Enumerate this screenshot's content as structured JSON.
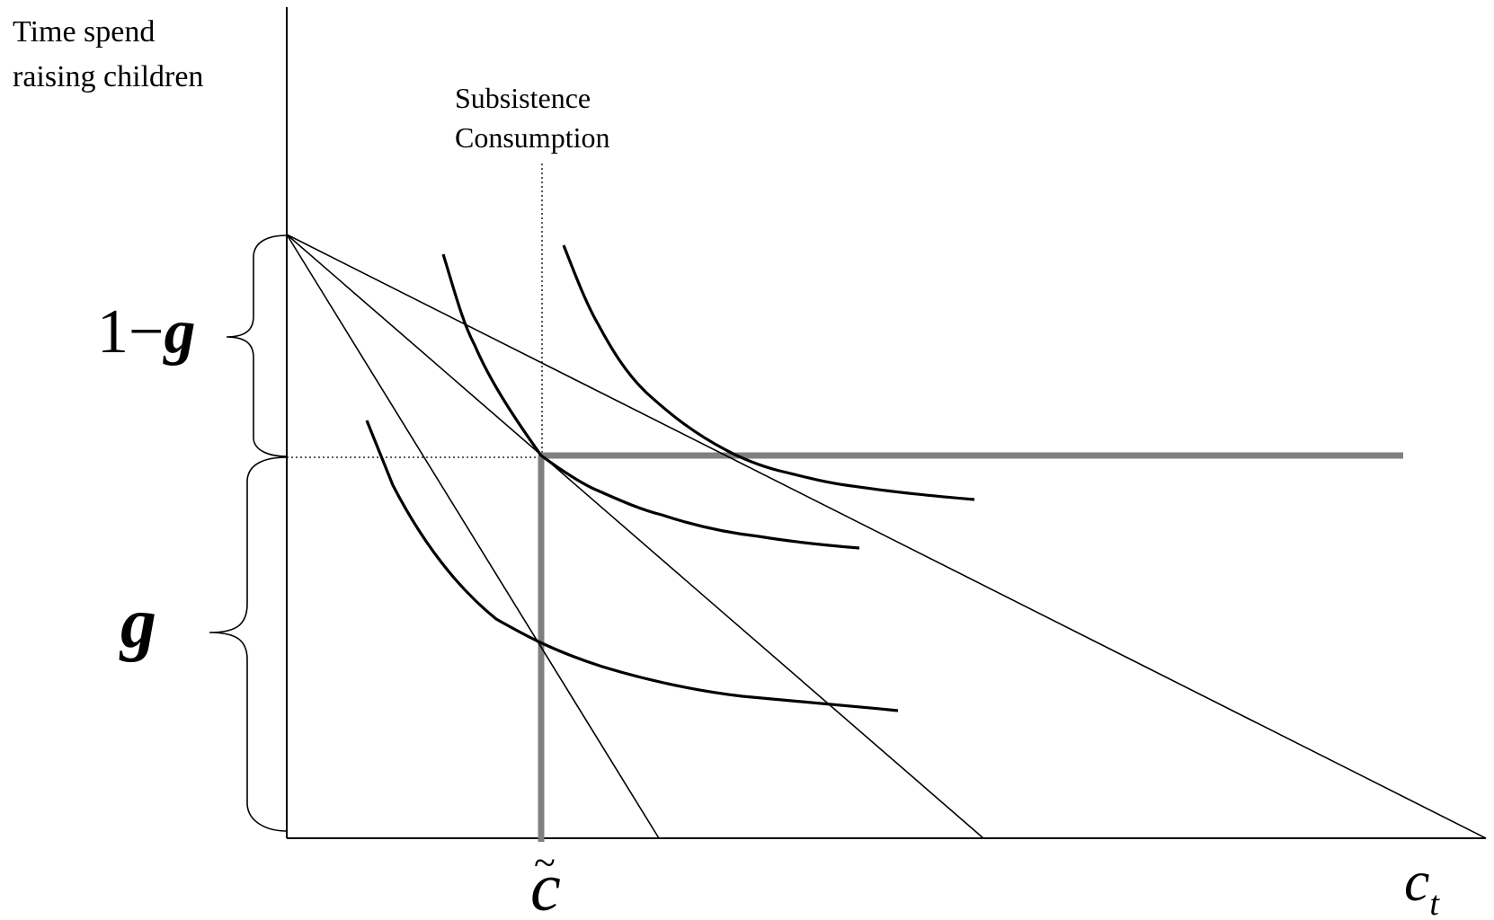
{
  "ylabel": [
    "Time spend",
    "raising children"
  ],
  "annotation": [
    "Subsistence",
    "Consumption"
  ],
  "bracket_labels": {
    "upper_one": "1",
    "upper_minus": "−",
    "upper_g": "g",
    "lower_g": "g"
  },
  "x_ticks": {
    "c_tilde": "c",
    "tilde_mark": "~",
    "c": "c",
    "subscript_t": "t"
  },
  "colors": {
    "ink": "#000000",
    "thick_gray": "#808080"
  }
}
